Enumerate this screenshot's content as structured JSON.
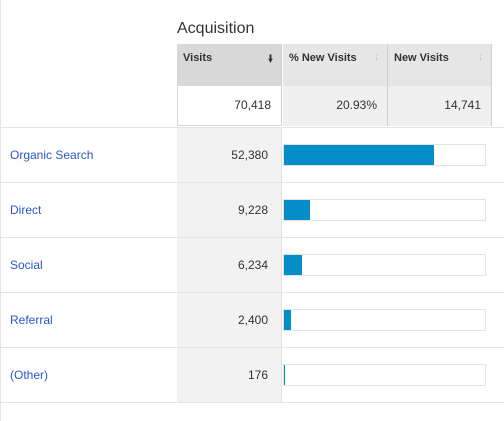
{
  "group_title": "Acquisition",
  "columns": [
    {
      "label": "Visits",
      "sort_icon": "sort-desc-arrow-icon",
      "active": true
    },
    {
      "label": "% New Visits",
      "sort_icon": "sort-arrow-icon",
      "active": false
    },
    {
      "label": "New Visits",
      "sort_icon": "sort-arrow-icon",
      "active": false
    }
  ],
  "totals": {
    "visits": "70,418",
    "pct_new_visits": "20.93%",
    "new_visits": "14,741"
  },
  "rows": [
    {
      "channel": "Organic Search",
      "visits": "52,380",
      "share": 0.7439
    },
    {
      "channel": "Direct",
      "visits": "9,228",
      "share": 0.131
    },
    {
      "channel": "Social",
      "visits": "6,234",
      "share": 0.0885
    },
    {
      "channel": "Referral",
      "visits": "2,400",
      "share": 0.0341
    },
    {
      "channel": "(Other)",
      "visits": "176",
      "share": 0.0025
    }
  ],
  "colors": {
    "bar": "#058dc7",
    "link": "#2a56c6"
  }
}
